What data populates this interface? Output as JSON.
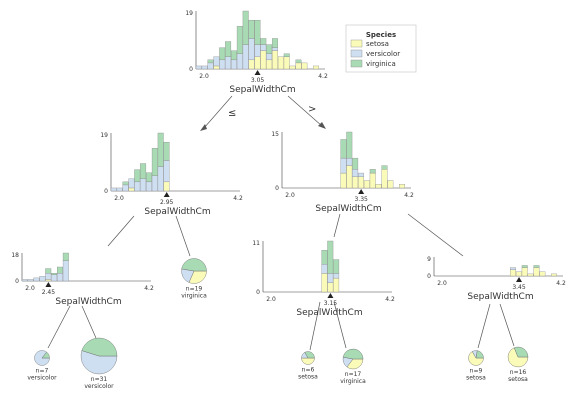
{
  "colors": {
    "setosa": "#fbfbb9",
    "versicolor": "#cfdff2",
    "virginica": "#a8dab4",
    "edge": "#555555",
    "axis": "#444444",
    "text": "#333333"
  },
  "legend": {
    "title": "Species",
    "items": [
      {
        "label": "setosa",
        "color_key": "setosa"
      },
      {
        "label": "versicolor",
        "color_key": "versicolor"
      },
      {
        "label": "virginica",
        "color_key": "virginica"
      }
    ]
  },
  "edge_labels": {
    "left": "≤",
    "right": ">"
  },
  "decision_nodes": [
    {
      "id": "root",
      "feature": "SepalWidthCm",
      "split_label": "3.05",
      "x_range": [
        2.0,
        4.2
      ],
      "x_tick_labels": [
        "2.0",
        "4.2"
      ],
      "y_max": 19,
      "y_tick_labels": [
        "19",
        "0"
      ],
      "bins": [
        {
          "x0": 2.0,
          "x1": 2.1,
          "setosa": 0,
          "versicolor": 1,
          "virginica": 0
        },
        {
          "x0": 2.1,
          "x1": 2.2,
          "setosa": 0,
          "versicolor": 1,
          "virginica": 0
        },
        {
          "x0": 2.2,
          "x1": 2.3,
          "setosa": 0,
          "versicolor": 2,
          "virginica": 1
        },
        {
          "x0": 2.3,
          "x1": 2.4,
          "setosa": 1,
          "versicolor": 3,
          "virginica": 0
        },
        {
          "x0": 2.4,
          "x1": 2.5,
          "setosa": 0,
          "versicolor": 3,
          "virginica": 4
        },
        {
          "x0": 2.5,
          "x1": 2.6,
          "setosa": 0,
          "versicolor": 4,
          "virginica": 5
        },
        {
          "x0": 2.6,
          "x1": 2.7,
          "setosa": 0,
          "versicolor": 3,
          "virginica": 3
        },
        {
          "x0": 2.7,
          "x1": 2.8,
          "setosa": 0,
          "versicolor": 5,
          "virginica": 9
        },
        {
          "x0": 2.8,
          "x1": 2.9,
          "setosa": 0,
          "versicolor": 8,
          "virginica": 11
        },
        {
          "x0": 2.9,
          "x1": 3.0,
          "setosa": 3,
          "versicolor": 7,
          "virginica": 6
        },
        {
          "x0": 3.0,
          "x1": 3.1,
          "setosa": 4,
          "versicolor": 4,
          "virginica": 8
        },
        {
          "x0": 3.1,
          "x1": 3.2,
          "setosa": 6,
          "versicolor": 2,
          "virginica": 2
        },
        {
          "x0": 3.2,
          "x1": 3.3,
          "setosa": 3,
          "versicolor": 2,
          "virginica": 3
        },
        {
          "x0": 3.3,
          "x1": 3.4,
          "setosa": 6,
          "versicolor": 1,
          "virginica": 3
        },
        {
          "x0": 3.4,
          "x1": 3.5,
          "setosa": 4,
          "versicolor": 0,
          "virginica": 0
        },
        {
          "x0": 3.5,
          "x1": 3.6,
          "setosa": 4,
          "versicolor": 0,
          "virginica": 1
        },
        {
          "x0": 3.6,
          "x1": 3.7,
          "setosa": 1,
          "versicolor": 0,
          "virginica": 0
        },
        {
          "x0": 3.7,
          "x1": 3.8,
          "setosa": 2,
          "versicolor": 0,
          "virginica": 1
        },
        {
          "x0": 3.8,
          "x1": 3.9,
          "setosa": 2,
          "versicolor": 0,
          "virginica": 0
        },
        {
          "x0": 4.0,
          "x1": 4.1,
          "setosa": 1,
          "versicolor": 0,
          "virginica": 0
        }
      ]
    },
    {
      "id": "node-left",
      "feature": "SepalWidthCm",
      "split_label": "2.95",
      "x_range": [
        2.0,
        4.2
      ],
      "x_tick_labels": [
        "2.0",
        "4.2"
      ],
      "y_max": 19,
      "y_tick_labels": [
        "19",
        "0"
      ],
      "bins": [
        {
          "x0": 2.0,
          "x1": 2.1,
          "setosa": 0,
          "versicolor": 1,
          "virginica": 0
        },
        {
          "x0": 2.1,
          "x1": 2.2,
          "setosa": 0,
          "versicolor": 1,
          "virginica": 0
        },
        {
          "x0": 2.2,
          "x1": 2.3,
          "setosa": 0,
          "versicolor": 2,
          "virginica": 1
        },
        {
          "x0": 2.3,
          "x1": 2.4,
          "setosa": 1,
          "versicolor": 3,
          "virginica": 0
        },
        {
          "x0": 2.4,
          "x1": 2.5,
          "setosa": 0,
          "versicolor": 3,
          "virginica": 4
        },
        {
          "x0": 2.5,
          "x1": 2.6,
          "setosa": 0,
          "versicolor": 4,
          "virginica": 5
        },
        {
          "x0": 2.6,
          "x1": 2.7,
          "setosa": 0,
          "versicolor": 3,
          "virginica": 3
        },
        {
          "x0": 2.7,
          "x1": 2.8,
          "setosa": 0,
          "versicolor": 5,
          "virginica": 9
        },
        {
          "x0": 2.8,
          "x1": 2.9,
          "setosa": 0,
          "versicolor": 8,
          "virginica": 11
        },
        {
          "x0": 2.9,
          "x1": 3.0,
          "setosa": 3,
          "versicolor": 7,
          "virginica": 6
        }
      ]
    },
    {
      "id": "node-right",
      "feature": "SepalWidthCm",
      "split_label": "3.35",
      "x_range": [
        2.0,
        4.2
      ],
      "x_tick_labels": [
        "2.0",
        "4.2"
      ],
      "y_max": 15,
      "y_tick_labels": [
        "15",
        "0"
      ],
      "bins": [
        {
          "x0": 3.0,
          "x1": 3.1,
          "setosa": 4,
          "versicolor": 4,
          "virginica": 5
        },
        {
          "x0": 3.1,
          "x1": 3.2,
          "setosa": 6,
          "versicolor": 2,
          "virginica": 7
        },
        {
          "x0": 3.2,
          "x1": 3.3,
          "setosa": 3,
          "versicolor": 2,
          "virginica": 3
        },
        {
          "x0": 3.3,
          "x1": 3.4,
          "setosa": 3,
          "versicolor": 1,
          "virginica": 0
        },
        {
          "x0": 3.4,
          "x1": 3.5,
          "setosa": 2,
          "versicolor": 0,
          "virginica": 0
        },
        {
          "x0": 3.5,
          "x1": 3.6,
          "setosa": 4,
          "versicolor": 0,
          "virginica": 1
        },
        {
          "x0": 3.6,
          "x1": 3.7,
          "setosa": 1,
          "versicolor": 0,
          "virginica": 0
        },
        {
          "x0": 3.7,
          "x1": 3.8,
          "setosa": 5,
          "versicolor": 0,
          "virginica": 1
        },
        {
          "x0": 3.8,
          "x1": 3.9,
          "setosa": 2,
          "versicolor": 0,
          "virginica": 0
        },
        {
          "x0": 4.0,
          "x1": 4.1,
          "setosa": 1,
          "versicolor": 0,
          "virginica": 0
        }
      ]
    },
    {
      "id": "node-left-left",
      "feature": "SepalWidthCm",
      "split_label": "2.45",
      "x_range": [
        2.0,
        4.2
      ],
      "x_tick_labels": [
        "2.0",
        "4.2"
      ],
      "y_max": 18,
      "y_tick_labels": [
        "18",
        "0"
      ],
      "bins": [
        {
          "x0": 2.0,
          "x1": 2.1,
          "setosa": 0,
          "versicolor": 1,
          "virginica": 0
        },
        {
          "x0": 2.1,
          "x1": 2.2,
          "setosa": 0,
          "versicolor": 1,
          "virginica": 0
        },
        {
          "x0": 2.2,
          "x1": 2.3,
          "setosa": 0,
          "versicolor": 2,
          "virginica": 0
        },
        {
          "x0": 2.3,
          "x1": 2.4,
          "setosa": 0,
          "versicolor": 3,
          "virginica": 0
        },
        {
          "x0": 2.4,
          "x1": 2.5,
          "setosa": 1,
          "versicolor": 4,
          "virginica": 3
        },
        {
          "x0": 2.5,
          "x1": 2.6,
          "setosa": 0,
          "versicolor": 4,
          "virginica": 1
        },
        {
          "x0": 2.6,
          "x1": 2.7,
          "setosa": 0,
          "versicolor": 5,
          "virginica": 4
        },
        {
          "x0": 2.7,
          "x1": 2.8,
          "setosa": 0,
          "versicolor": 13,
          "virginica": 5
        }
      ]
    },
    {
      "id": "node-right-left",
      "feature": "SepalWidthCm",
      "split_label": "3.15",
      "x_range": [
        2.0,
        4.2
      ],
      "x_tick_labels": [
        "2.0",
        "4.2"
      ],
      "y_max": 11,
      "y_tick_labels": [
        "11",
        "0"
      ],
      "bins": [
        {
          "x0": 3.0,
          "x1": 3.1,
          "setosa": 4,
          "versicolor": 2,
          "virginica": 3
        },
        {
          "x0": 3.1,
          "x1": 3.2,
          "setosa": 2,
          "versicolor": 2,
          "virginica": 7
        },
        {
          "x0": 3.2,
          "x1": 3.3,
          "setosa": 3,
          "versicolor": 1,
          "virginica": 3
        }
      ]
    },
    {
      "id": "node-right-right",
      "feature": "SepalWidthCm",
      "split_label": "3.45",
      "x_range": [
        2.0,
        4.2
      ],
      "x_tick_labels": [
        "2.0",
        "4.2"
      ],
      "y_max": 9,
      "y_tick_labels": [
        "9",
        "0"
      ],
      "bins": [
        {
          "x0": 3.3,
          "x1": 3.4,
          "setosa": 3,
          "versicolor": 1,
          "virginica": 0
        },
        {
          "x0": 3.4,
          "x1": 3.5,
          "setosa": 2,
          "versicolor": 0,
          "virginica": 0
        },
        {
          "x0": 3.5,
          "x1": 3.6,
          "setosa": 4,
          "versicolor": 0,
          "virginica": 1
        },
        {
          "x0": 3.6,
          "x1": 3.7,
          "setosa": 1,
          "versicolor": 0,
          "virginica": 0
        },
        {
          "x0": 3.7,
          "x1": 3.8,
          "setosa": 4,
          "versicolor": 0,
          "virginica": 1
        },
        {
          "x0": 3.8,
          "x1": 3.9,
          "setosa": 2,
          "versicolor": 0,
          "virginica": 0
        },
        {
          "x0": 4.0,
          "x1": 4.1,
          "setosa": 1,
          "versicolor": 0,
          "virginica": 0
        }
      ]
    }
  ],
  "leaves": [
    {
      "id": "leaf-ll-left",
      "n_label": "n=7",
      "class_label": "versicolor",
      "n": 7,
      "counts": {
        "setosa": 0,
        "versicolor": 6,
        "virginica": 1
      }
    },
    {
      "id": "leaf-ll-right",
      "n_label": "n=31",
      "class_label": "versicolor",
      "n": 31,
      "counts": {
        "setosa": 0,
        "versicolor": 17,
        "virginica": 14
      }
    },
    {
      "id": "leaf-lr",
      "n_label": "n=19",
      "class_label": "virginica",
      "n": 19,
      "counts": {
        "setosa": 6,
        "versicolor": 4,
        "virginica": 9
      }
    },
    {
      "id": "leaf-rll",
      "n_label": "n=6",
      "class_label": "setosa",
      "n": 6,
      "counts": {
        "setosa": 3,
        "versicolor": 1,
        "virginica": 2
      }
    },
    {
      "id": "leaf-rlr",
      "n_label": "n=17",
      "class_label": "virginica",
      "n": 17,
      "counts": {
        "setosa": 6,
        "versicolor": 3,
        "virginica": 8
      }
    },
    {
      "id": "leaf-rrl",
      "n_label": "n=9",
      "class_label": "setosa",
      "n": 9,
      "counts": {
        "setosa": 6,
        "versicolor": 1,
        "virginica": 2
      }
    },
    {
      "id": "leaf-rrr",
      "n_label": "n=16",
      "class_label": "setosa",
      "n": 16,
      "counts": {
        "setosa": 11,
        "versicolor": 0,
        "virginica": 5
      }
    }
  ]
}
